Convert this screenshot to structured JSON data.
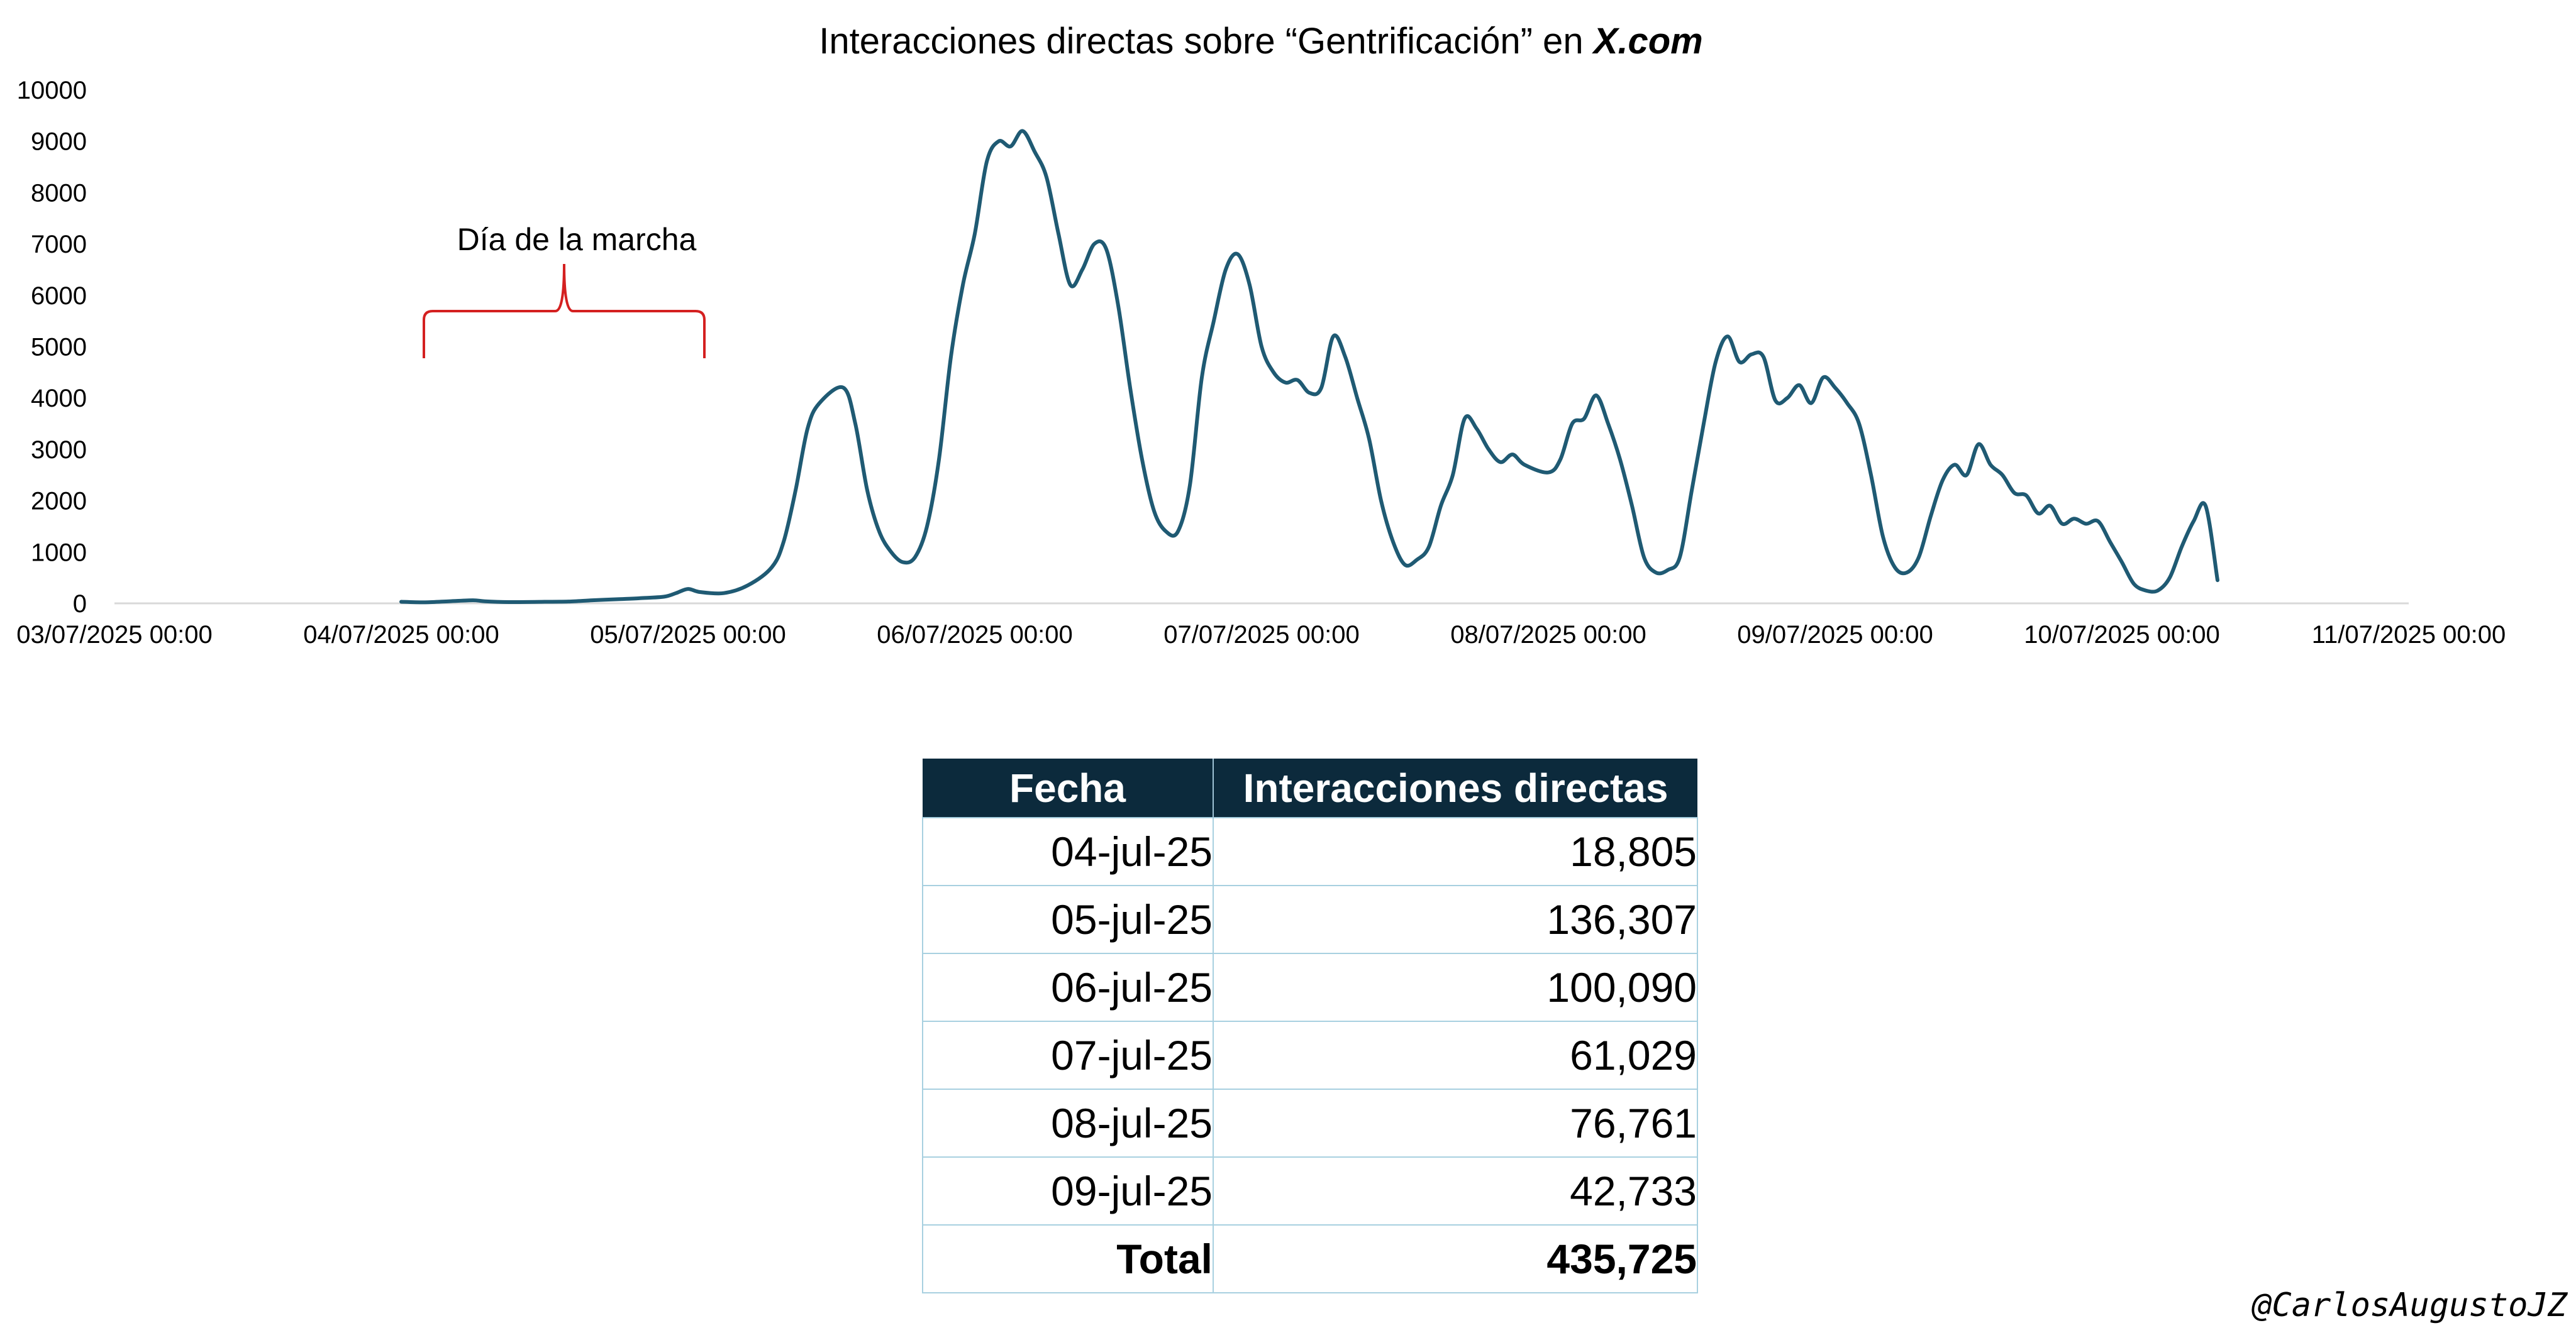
{
  "chart_data": {
    "type": "line",
    "title_main": "Interacciones directas sobre “Gentrificación” en ",
    "title_brand": "X.com",
    "xlabel": "",
    "ylabel": "",
    "ylim": [
      0,
      10000
    ],
    "yticks": [
      0,
      1000,
      2000,
      3000,
      4000,
      5000,
      6000,
      7000,
      8000,
      9000,
      10000
    ],
    "xlim": [
      "03/07/2025 00:00",
      "11/07/2025 00:00"
    ],
    "xticks": [
      "03/07/2025 00:00",
      "04/07/2025 00:00",
      "05/07/2025 00:00",
      "06/07/2025 00:00",
      "07/07/2025 00:00",
      "08/07/2025 00:00",
      "09/07/2025 00:00",
      "10/07/2025 00:00",
      "11/07/2025 00:00"
    ],
    "grid": false,
    "line_color": "#1f5a73",
    "annotation": {
      "label": "Día de la marcha",
      "from": "04/07/2025 00:00",
      "to": "05/07/2025 00:00",
      "color": "#d42020"
    },
    "series": [
      {
        "points": [
          [
            "04/07/2025 00:00",
            30
          ],
          [
            "04/07/2025 02:00",
            20
          ],
          [
            "04/07/2025 04:00",
            40
          ],
          [
            "04/07/2025 06:00",
            60
          ],
          [
            "04/07/2025 07:00",
            40
          ],
          [
            "04/07/2025 09:00",
            25
          ],
          [
            "04/07/2025 12:00",
            30
          ],
          [
            "04/07/2025 14:00",
            35
          ],
          [
            "04/07/2025 16:00",
            60
          ],
          [
            "04/07/2025 18:00",
            80
          ],
          [
            "04/07/2025 20:00",
            100
          ],
          [
            "04/07/2025 22:00",
            130
          ],
          [
            "04/07/2025 23:00",
            200
          ],
          [
            "05/07/2025 00:00",
            280
          ],
          [
            "05/07/2025 01:00",
            220
          ],
          [
            "05/07/2025 03:00",
            200
          ],
          [
            "05/07/2025 05:00",
            350
          ],
          [
            "05/07/2025 07:00",
            700
          ],
          [
            "05/07/2025 08:00",
            1200
          ],
          [
            "05/07/2025 09:00",
            2200
          ],
          [
            "05/07/2025 10:00",
            3400
          ],
          [
            "05/07/2025 11:00",
            3900
          ],
          [
            "05/07/2025 13:00",
            4200
          ],
          [
            "05/07/2025 14:00",
            3500
          ],
          [
            "05/07/2025 15:00",
            2200
          ],
          [
            "05/07/2025 16:00",
            1400
          ],
          [
            "05/07/2025 17:00",
            1000
          ],
          [
            "05/07/2025 18:00",
            800
          ],
          [
            "05/07/2025 19:00",
            900
          ],
          [
            "05/07/2025 20:00",
            1500
          ],
          [
            "05/07/2025 21:00",
            2800
          ],
          [
            "05/07/2025 22:00",
            4800
          ],
          [
            "05/07/2025 23:00",
            6200
          ],
          [
            "06/07/2025 00:00",
            7200
          ],
          [
            "06/07/2025 01:00",
            8600
          ],
          [
            "06/07/2025 02:00",
            9000
          ],
          [
            "06/07/2025 03:00",
            8900
          ],
          [
            "06/07/2025 04:00",
            9200
          ],
          [
            "06/07/2025 05:00",
            8800
          ],
          [
            "06/07/2025 06:00",
            8300
          ],
          [
            "06/07/2025 07:00",
            7200
          ],
          [
            "06/07/2025 08:00",
            6200
          ],
          [
            "06/07/2025 09:00",
            6500
          ],
          [
            "06/07/2025 10:00",
            7000
          ],
          [
            "06/07/2025 11:00",
            6900
          ],
          [
            "06/07/2025 12:00",
            5800
          ],
          [
            "06/07/2025 13:00",
            4200
          ],
          [
            "06/07/2025 14:00",
            2800
          ],
          [
            "06/07/2025 15:00",
            1800
          ],
          [
            "06/07/2025 16:00",
            1400
          ],
          [
            "06/07/2025 17:00",
            1400
          ],
          [
            "06/07/2025 18:00",
            2300
          ],
          [
            "06/07/2025 19:00",
            4400
          ],
          [
            "06/07/2025 20:00",
            5500
          ],
          [
            "06/07/2025 21:00",
            6500
          ],
          [
            "06/07/2025 22:00",
            6800
          ],
          [
            "06/07/2025 23:00",
            6200
          ],
          [
            "07/07/2025 00:00",
            5000
          ],
          [
            "07/07/2025 01:00",
            4500
          ],
          [
            "07/07/2025 02:00",
            4300
          ],
          [
            "07/07/2025 03:00",
            4350
          ],
          [
            "07/07/2025 04:00",
            4100
          ],
          [
            "07/07/2025 05:00",
            4200
          ],
          [
            "07/07/2025 06:00",
            5200
          ],
          [
            "07/07/2025 07:00",
            4800
          ],
          [
            "07/07/2025 08:00",
            4000
          ],
          [
            "07/07/2025 09:00",
            3200
          ],
          [
            "07/07/2025 10:00",
            2000
          ],
          [
            "07/07/2025 11:00",
            1200
          ],
          [
            "07/07/2025 12:00",
            750
          ],
          [
            "07/07/2025 13:00",
            850
          ],
          [
            "07/07/2025 14:00",
            1100
          ],
          [
            "07/07/2025 15:00",
            1900
          ],
          [
            "07/07/2025 16:00",
            2500
          ],
          [
            "07/07/2025 17:00",
            3600
          ],
          [
            "07/07/2025 18:00",
            3400
          ],
          [
            "07/07/2025 19:00",
            3000
          ],
          [
            "07/07/2025 20:00",
            2750
          ],
          [
            "07/07/2025 21:00",
            2900
          ],
          [
            "07/07/2025 22:00",
            2700
          ],
          [
            "08/07/2025 00:00",
            2550
          ],
          [
            "08/07/2025 01:00",
            2800
          ],
          [
            "08/07/2025 02:00",
            3500
          ],
          [
            "08/07/2025 03:00",
            3600
          ],
          [
            "08/07/2025 04:00",
            4050
          ],
          [
            "08/07/2025 05:00",
            3500
          ],
          [
            "08/07/2025 06:00",
            2800
          ],
          [
            "08/07/2025 07:00",
            1900
          ],
          [
            "08/07/2025 08:00",
            900
          ],
          [
            "08/07/2025 09:00",
            600
          ],
          [
            "08/07/2025 10:00",
            650
          ],
          [
            "08/07/2025 11:00",
            900
          ],
          [
            "08/07/2025 12:00",
            2200
          ],
          [
            "08/07/2025 13:00",
            3500
          ],
          [
            "08/07/2025 14:00",
            4700
          ],
          [
            "08/07/2025 15:00",
            5200
          ],
          [
            "08/07/2025 16:00",
            4700
          ],
          [
            "08/07/2025 17:00",
            4850
          ],
          [
            "08/07/2025 18:00",
            4800
          ],
          [
            "08/07/2025 19:00",
            3950
          ],
          [
            "08/07/2025 20:00",
            4000
          ],
          [
            "08/07/2025 21:00",
            4250
          ],
          [
            "08/07/2025 22:00",
            3900
          ],
          [
            "08/07/2025 23:00",
            4400
          ],
          [
            "09/07/2025 00:00",
            4200
          ],
          [
            "09/07/2025 01:00",
            3900
          ],
          [
            "09/07/2025 02:00",
            3500
          ],
          [
            "09/07/2025 03:00",
            2500
          ],
          [
            "09/07/2025 04:00",
            1300
          ],
          [
            "09/07/2025 05:00",
            700
          ],
          [
            "09/07/2025 06:00",
            600
          ],
          [
            "09/07/2025 07:00",
            900
          ],
          [
            "09/07/2025 08:00",
            1700
          ],
          [
            "09/07/2025 09:00",
            2400
          ],
          [
            "09/07/2025 10:00",
            2700
          ],
          [
            "09/07/2025 11:00",
            2500
          ],
          [
            "09/07/2025 12:00",
            3100
          ],
          [
            "09/07/2025 13:00",
            2700
          ],
          [
            "09/07/2025 14:00",
            2500
          ],
          [
            "09/07/2025 15:00",
            2150
          ],
          [
            "09/07/2025 16:00",
            2100
          ],
          [
            "09/07/2025 17:00",
            1750
          ],
          [
            "09/07/2025 18:00",
            1900
          ],
          [
            "09/07/2025 19:00",
            1550
          ],
          [
            "09/07/2025 20:00",
            1650
          ],
          [
            "09/07/2025 21:00",
            1550
          ],
          [
            "09/07/2025 22:00",
            1600
          ],
          [
            "09/07/2025 23:00",
            1200
          ],
          [
            "10/07/2025 00:00",
            800
          ],
          [
            "10/07/2025 01:00",
            380
          ],
          [
            "10/07/2025 02:00",
            250
          ],
          [
            "10/07/2025 03:00",
            250
          ],
          [
            "10/07/2025 04:00",
            500
          ],
          [
            "10/07/2025 05:00",
            1100
          ],
          [
            "10/07/2025 06:00",
            1600
          ],
          [
            "10/07/2025 07:00",
            1900
          ],
          [
            "10/07/2025 08:00",
            450
          ]
        ]
      }
    ]
  },
  "table": {
    "headers": [
      "Fecha",
      "Interacciones directas"
    ],
    "rows": [
      [
        "04-jul-25",
        "18,805"
      ],
      [
        "05-jul-25",
        "136,307"
      ],
      [
        "06-jul-25",
        "100,090"
      ],
      [
        "07-jul-25",
        "61,029"
      ],
      [
        "08-jul-25",
        "76,761"
      ],
      [
        "09-jul-25",
        "42,733"
      ]
    ],
    "total_label": "Total",
    "total_value": "435,725"
  },
  "credit": "@CarlosAugustoJZ"
}
